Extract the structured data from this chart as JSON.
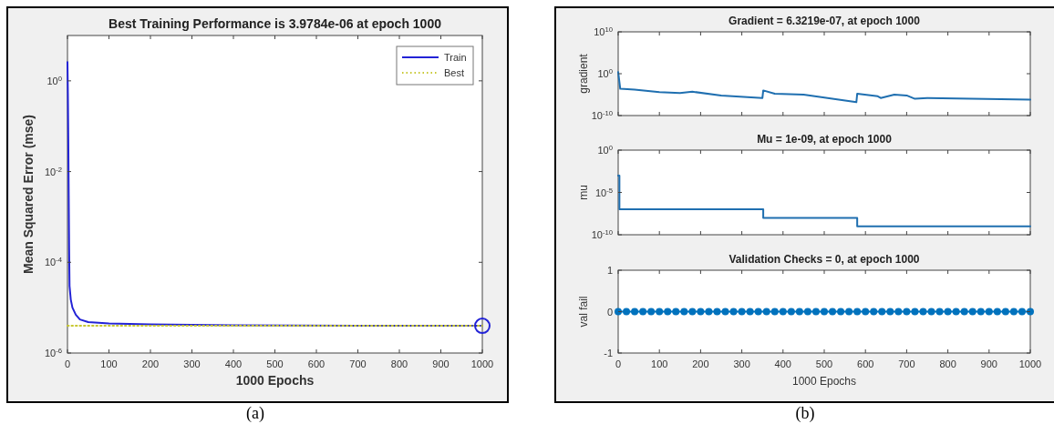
{
  "chart_data": [
    {
      "type": "line",
      "title": "Best Training Performance is 3.9784e-06 at epoch 1000",
      "xlabel": "1000 Epochs",
      "ylabel": "Mean Squared Error  (mse)",
      "log": "y",
      "xlim": [
        0,
        1000
      ],
      "ylim": [
        1e-06,
        10
      ],
      "xticks": [
        0,
        100,
        200,
        300,
        400,
        500,
        600,
        700,
        800,
        900,
        1000
      ],
      "yticks": [
        {
          "value": 1e-06,
          "label": "10$^{-6}$"
        },
        {
          "value": 0.0001,
          "label": "10$^{-4}$"
        },
        {
          "value": 0.01,
          "label": "10$^{-2}$"
        },
        {
          "value": 1,
          "label": "10$^{0}$"
        }
      ],
      "legend": "top right",
      "annotations": [
        "(a)"
      ],
      "series": [
        {
          "name": "Train",
          "color": "#2323d6",
          "x": [
            0,
            1,
            2,
            3,
            4,
            5,
            8,
            12,
            20,
            30,
            50,
            100,
            200,
            400,
            700,
            1000
          ],
          "values": [
            2.6,
            0.5,
            0.05,
            0.003,
            0.0002,
            3e-05,
            1.5e-05,
            1e-05,
            7e-06,
            5.5e-06,
            4.8e-06,
            4.5e-06,
            4.3e-06,
            4.1e-06,
            4e-06,
            3.9784e-06
          ]
        },
        {
          "name": "Best",
          "type": "line",
          "line_style": "dotted",
          "color": "#c8c832",
          "x": [
            0,
            1000
          ],
          "values": [
            3.9784e-06,
            3.9784e-06
          ]
        },
        {
          "type": "scatter",
          "marker": "circle",
          "color": "#2323d6",
          "x": [
            1000
          ],
          "values": [
            3.9784e-06
          ]
        }
      ]
    },
    {
      "type": "line",
      "title": "Gradient = 6.3219e-07, at epoch 1000",
      "ylabel": "gradient",
      "log": "y",
      "xlim": [
        0,
        1000
      ],
      "ylim": [
        1e-10,
        10000000000.0
      ],
      "xticks": [
        0,
        100,
        200,
        300,
        400,
        500,
        600,
        700,
        800,
        900,
        1000
      ],
      "yticks": [
        {
          "value": 1e-10,
          "label": "10$^{-10}$"
        },
        {
          "value": 1,
          "label": "10$^{0}$"
        },
        {
          "value": 10000000000.0,
          "label": "10$^{10}$"
        }
      ],
      "tick_labels": "y",
      "series": [
        {
          "color": "#1f6fb0",
          "x": [
            0,
            5,
            40,
            100,
            150,
            180,
            250,
            350,
            352,
            380,
            450,
            578,
            580,
            630,
            637,
            670,
            700,
            720,
            750,
            1000
          ],
          "values": [
            2.5,
            0.00025,
            0.00016,
            4e-05,
            2.5e-05,
            5e-05,
            6.3e-06,
            1.6e-06,
            0.0001,
            1.6e-05,
            1e-05,
            1.6e-07,
            1.6e-05,
            4e-06,
            1.6e-06,
            1e-05,
            6.3e-06,
            1e-06,
            1.6e-06,
            6.3219e-07
          ]
        }
      ]
    },
    {
      "type": "step",
      "title": "Mu = 1e-09, at epoch 1000",
      "ylabel": "mu",
      "log": "y",
      "xlim": [
        0,
        1000
      ],
      "ylim": [
        1e-10,
        1
      ],
      "xticks": [
        0,
        100,
        200,
        300,
        400,
        500,
        600,
        700,
        800,
        900,
        1000
      ],
      "yticks": [
        {
          "value": 1e-10,
          "label": "10$^{-10}$"
        },
        {
          "value": 1e-05,
          "label": "10$^{-5}$"
        },
        {
          "value": 1,
          "label": "10$^{0}$"
        }
      ],
      "tick_labels": "y",
      "series": [
        {
          "color": "#1f6fb0",
          "x": [
            0,
            3,
            352,
            580,
            1000
          ],
          "values": [
            0.001,
            1e-07,
            1e-08,
            1e-09,
            1e-09
          ]
        }
      ]
    },
    {
      "type": "line",
      "title": "Validation Checks = 0, at epoch 1000",
      "xlabel": "1000 Epochs",
      "ylabel": "val fail",
      "xlim": [
        0,
        1000
      ],
      "ylim": [
        -1,
        1
      ],
      "xticks": [
        0,
        100,
        200,
        300,
        400,
        500,
        600,
        700,
        800,
        900,
        1000
      ],
      "yticks": [
        -1,
        0,
        1
      ],
      "marker": "circle",
      "annotations": [
        "(b)"
      ],
      "series": [
        {
          "color": "#0072bd",
          "x": [
            0,
            20,
            40,
            60,
            80,
            100,
            120,
            140,
            160,
            180,
            200,
            220,
            240,
            260,
            280,
            300,
            320,
            340,
            360,
            380,
            400,
            420,
            440,
            460,
            480,
            500,
            520,
            540,
            560,
            580,
            600,
            620,
            640,
            660,
            680,
            700,
            720,
            740,
            760,
            780,
            800,
            820,
            840,
            860,
            880,
            900,
            920,
            940,
            960,
            980,
            1000
          ],
          "values": [
            0,
            0,
            0,
            0,
            0,
            0,
            0,
            0,
            0,
            0,
            0,
            0,
            0,
            0,
            0,
            0,
            0,
            0,
            0,
            0,
            0,
            0,
            0,
            0,
            0,
            0,
            0,
            0,
            0,
            0,
            0,
            0,
            0,
            0,
            0,
            0,
            0,
            0,
            0,
            0,
            0,
            0,
            0,
            0,
            0,
            0,
            0,
            0,
            0,
            0,
            0
          ]
        }
      ]
    }
  ]
}
